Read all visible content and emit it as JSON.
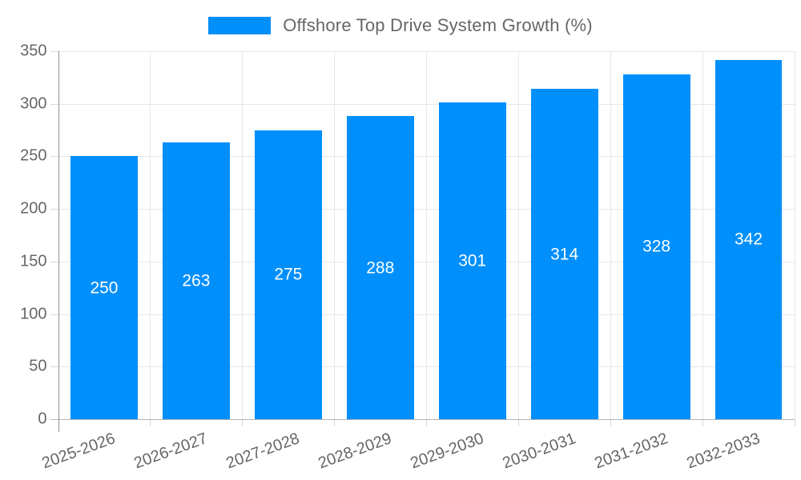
{
  "chart_data": {
    "type": "bar",
    "title": "Offshore Top Drive System Growth (%)",
    "legend": {
      "position": "top",
      "label": "Offshore Top Drive System Growth (%)"
    },
    "categories": [
      "2025-2026",
      "2026-2027",
      "2027-2028",
      "2028-2029",
      "2029-2030",
      "2030-2031",
      "2031-2032",
      "2032-2033"
    ],
    "values": [
      250,
      263,
      275,
      288,
      301,
      314,
      328,
      342
    ],
    "data_labels": [
      "250",
      "263",
      "275",
      "288",
      "301",
      "314",
      "328",
      "342"
    ],
    "xlabel": "",
    "ylabel": "",
    "ylim": [
      0,
      350
    ],
    "yticks": [
      0,
      50,
      100,
      150,
      200,
      250,
      300,
      350
    ],
    "grid": "on",
    "colors": {
      "bar": "#008FFB",
      "value_label": "#ffffff",
      "axis_label": "#666666",
      "legend_text": "#666666",
      "gridline": "#e7e7e7",
      "y_axis_line": "#8f8f8f",
      "x_axis_line": "#b5b5b5",
      "tick": "#d6d6d6",
      "background": "#ffffff"
    }
  }
}
